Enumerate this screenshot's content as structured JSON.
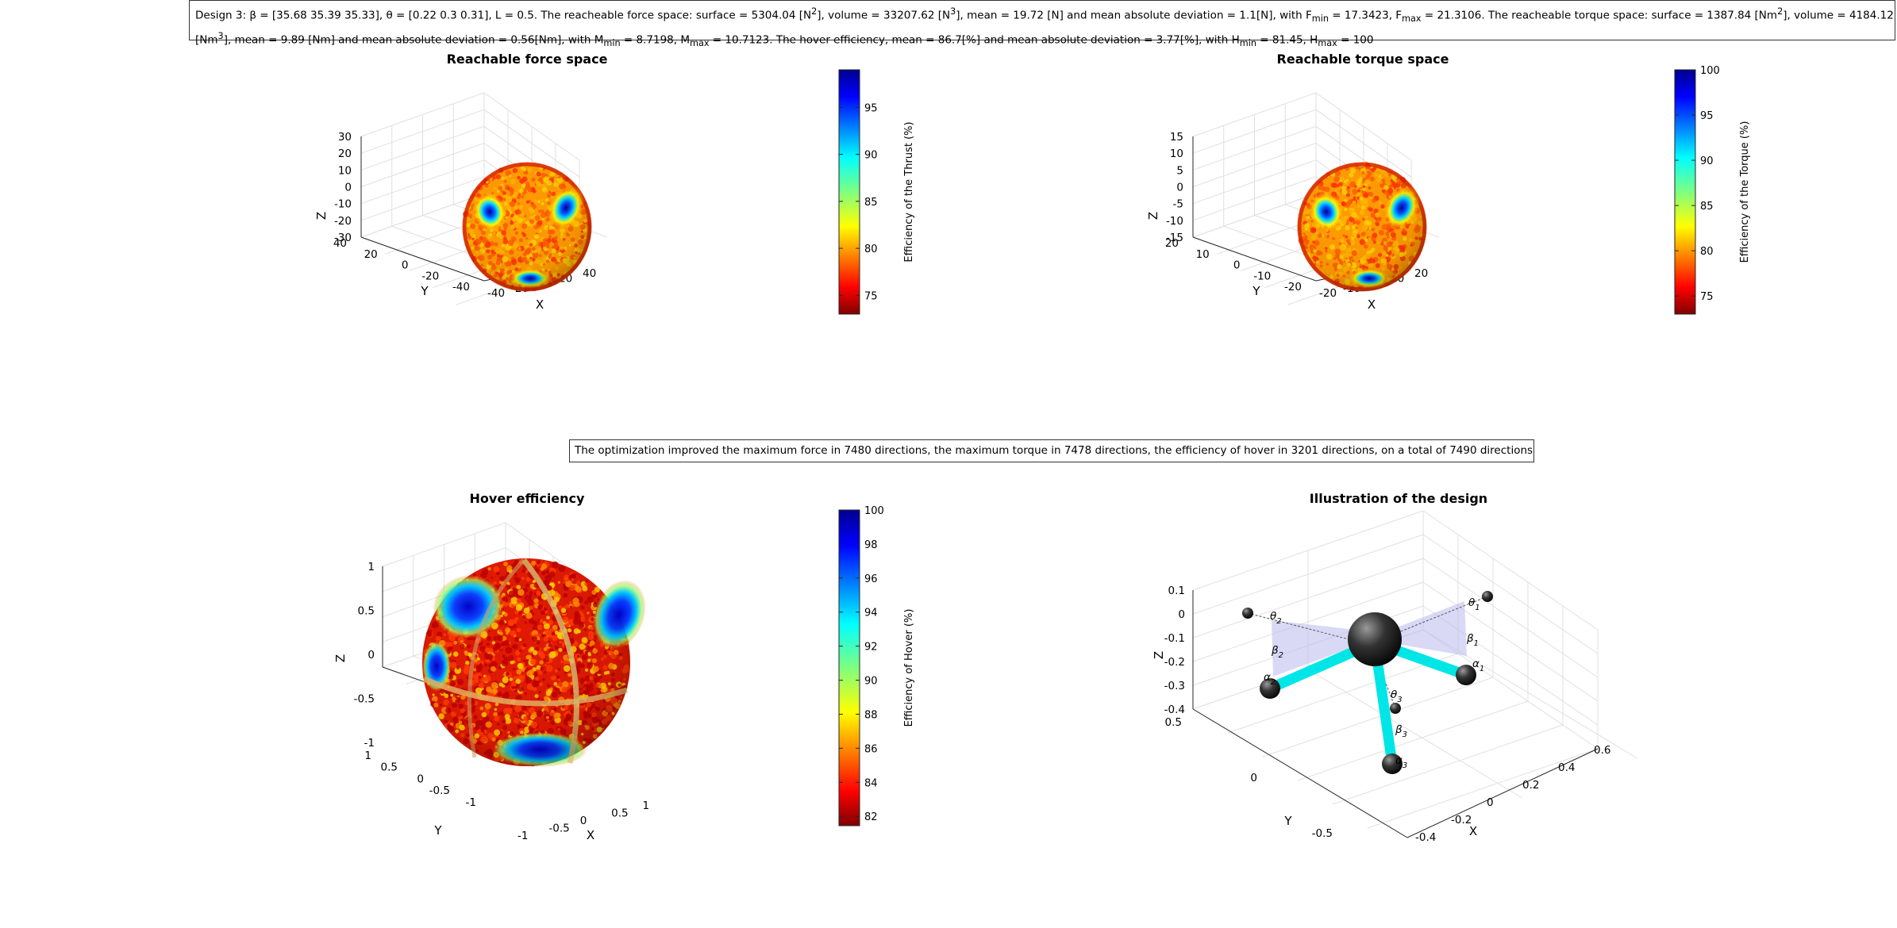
{
  "header": {
    "line1": {
      "p1": "Design 3: β = [35.68 35.39 35.33], θ = [0.22 0.3 0.31], L = 0.5. The reacheable force space: surface = 5304.04 [N",
      "p2": "2",
      "p3": "], volume = 33207.62 [N",
      "p4": "3",
      "p5": "], mean = 19.72 [N] and mean absolute deviation = 1.1[N], with F",
      "p6": "min",
      "p7": " = 17.3423, F",
      "p8": "max",
      "p9": " = 21.3106. The reacheable torque space: surface = 1387.84 [Nm",
      "p10": "2",
      "p11": "], volume = 4184.12"
    },
    "line2": {
      "p1": "[Nm",
      "p2": "3",
      "p3": "], mean = 9.89 [Nm] and mean absolute deviation = 0.56[Nm], with M",
      "p4": "min",
      "p5": " = 8.7198, M",
      "p6": "max",
      "p7": " = 10.7123. The hover efficiency, mean = 86.7[%] and mean absolute deviation = 3.77[%], with H",
      "p8": "min",
      "p9": " = 81.45, H",
      "p10": "max",
      "p11": " = 100"
    }
  },
  "summary_text": "The optimization improved the maximum force in 7480 directions, the maximum torque in 7478 directions, the efficiency of hover in 3201 directions, on a total of 7490 directions",
  "colors": {
    "jet_top": "#00008f",
    "jet_bottom": "#800000",
    "grid": "#e0e0e0",
    "axis": "#262626",
    "arm": "#00e5e5",
    "plane": "#b9b9ee"
  },
  "chart_data": [
    {
      "type": "scatter",
      "subtype": "3d-surface-colored",
      "title": "Reachable force space",
      "xlabel": "X",
      "ylabel": "Y",
      "zlabel": "Z",
      "x_ticks": [
        "-40",
        "-20",
        "0",
        "20",
        "40"
      ],
      "y_ticks": [
        "-40",
        "-20",
        "0",
        "20",
        "40"
      ],
      "z_ticks": [
        "30",
        "20",
        "10",
        "0",
        "-10",
        "-20",
        "-30"
      ],
      "xlim": [
        -40,
        40
      ],
      "ylim": [
        -40,
        40
      ],
      "zlim": [
        -30,
        30
      ],
      "radius_mean": 19.72,
      "radius_min": 17.3423,
      "radius_max": 21.3106,
      "colorbar": {
        "label": "Efficiency of the Thrust (%)",
        "ticks": [
          "95",
          "90",
          "85",
          "80",
          "75"
        ],
        "tick_values": [
          95,
          90,
          85,
          80,
          75
        ],
        "range": [
          73,
          99
        ],
        "colormap": "jet"
      }
    },
    {
      "type": "scatter",
      "subtype": "3d-surface-colored",
      "title": "Reachable torque space",
      "xlabel": "X",
      "ylabel": "Y",
      "zlabel": "Z",
      "x_ticks": [
        "-20",
        "-10",
        "0",
        "10",
        "20"
      ],
      "y_ticks": [
        "-20",
        "-10",
        "0",
        "10",
        "20"
      ],
      "z_ticks": [
        "15",
        "10",
        "5",
        "0",
        "-5",
        "-10",
        "-15"
      ],
      "xlim": [
        -20,
        20
      ],
      "ylim": [
        -20,
        20
      ],
      "zlim": [
        -15,
        15
      ],
      "radius_mean": 9.89,
      "radius_min": 8.7198,
      "radius_max": 10.7123,
      "colorbar": {
        "label": "Efficiency of the Torque (%)",
        "ticks": [
          "100",
          "95",
          "90",
          "85",
          "80",
          "75"
        ],
        "tick_values": [
          100,
          95,
          90,
          85,
          80,
          75
        ],
        "range": [
          73,
          100
        ],
        "colormap": "jet"
      }
    },
    {
      "type": "scatter",
      "subtype": "3d-unit-sphere-colored",
      "title": "Hover efficiency",
      "xlabel": "X",
      "ylabel": "Y",
      "zlabel": "Z",
      "x_ticks": [
        "-1",
        "-0.5",
        "0",
        "0.5",
        "1"
      ],
      "y_ticks": [
        "-1",
        "-0.5",
        "0",
        "0.5",
        "1"
      ],
      "z_ticks": [
        "1",
        "0.5",
        "0",
        "-0.5",
        "-1"
      ],
      "xlim": [
        -1,
        1
      ],
      "ylim": [
        -1,
        1
      ],
      "zlim": [
        -1,
        1
      ],
      "colorbar": {
        "label": "Efficiency of Hover (%)",
        "ticks": [
          "100",
          "98",
          "96",
          "94",
          "92",
          "90",
          "88",
          "86",
          "84",
          "82"
        ],
        "tick_values": [
          100,
          98,
          96,
          94,
          92,
          90,
          88,
          86,
          84,
          82
        ],
        "range": [
          81.45,
          100
        ],
        "colormap": "jet"
      }
    },
    {
      "type": "scatter",
      "subtype": "3d-design-illustration",
      "title": "Illustration of the design",
      "xlabel": "X",
      "ylabel": "Y",
      "zlabel": "Z",
      "x_ticks": [
        "-0.4",
        "-0.2",
        "0",
        "0.2",
        "0.4",
        "0.6"
      ],
      "y_ticks": [
        "-0.5",
        "0",
        "0.5"
      ],
      "z_ticks": [
        "0.1",
        "0",
        "-0.1",
        "-0.2",
        "-0.3",
        "-0.4"
      ],
      "arm_labels": [
        "θ1",
        "β1",
        "α1",
        "θ2",
        "β2",
        "α2",
        "θ3",
        "β3",
        "α3"
      ]
    }
  ]
}
